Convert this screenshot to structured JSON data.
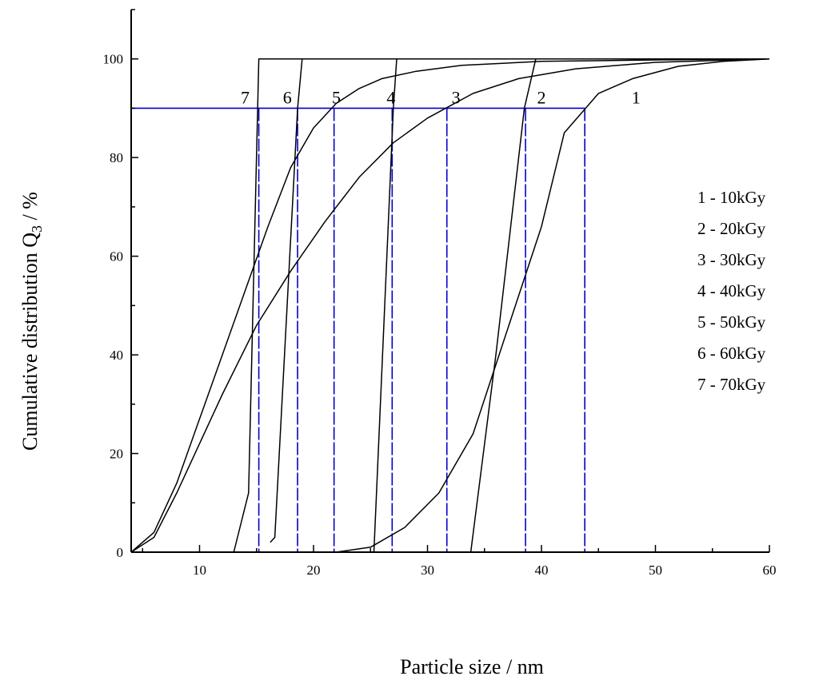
{
  "chart_data": {
    "type": "line",
    "xlabel": "Particle size / nm",
    "ylabel_main": "Cumulative distribution Q",
    "ylabel_sub": "3",
    "ylabel_unit": " / %",
    "xlim": [
      4,
      60
    ],
    "ylim": [
      0,
      110
    ],
    "x_ticks": [
      10,
      20,
      30,
      40,
      50,
      60
    ],
    "y_ticks": [
      0,
      20,
      40,
      60,
      80,
      100
    ],
    "grid": false,
    "legend_placement": "right",
    "colors": {
      "curve": "#000000",
      "guide": "#0000cc"
    },
    "series": [
      {
        "name": "1 - 10kGy",
        "label": "1",
        "label_at": [
          48.3,
          91
        ],
        "x": [
          22,
          25,
          28,
          31,
          34,
          36,
          38,
          40,
          42,
          45,
          48,
          52,
          56,
          60
        ],
        "y": [
          0,
          1,
          5,
          12,
          24,
          38,
          52,
          66,
          85,
          93,
          96,
          98.5,
          99.5,
          100
        ]
      },
      {
        "name": "2 - 20kGy",
        "label": "2",
        "label_at": [
          40,
          91
        ],
        "x": [
          33.8,
          36,
          38.5,
          39.5,
          60
        ],
        "y": [
          0,
          40,
          90,
          100,
          100
        ]
      },
      {
        "name": "3 - 30kGy",
        "label": "3",
        "label_at": [
          32.5,
          91
        ],
        "x": [
          4,
          6,
          8,
          10,
          12,
          15,
          18,
          21,
          24,
          27,
          30,
          34,
          38,
          43,
          50,
          60
        ],
        "y": [
          0,
          3,
          12,
          22,
          32,
          46,
          57,
          67,
          76,
          83,
          88,
          93,
          96,
          98,
          99.3,
          100
        ]
      },
      {
        "name": "4 - 40kGy",
        "label": "4",
        "label_at": [
          26.8,
          91
        ],
        "x": [
          25.3,
          27,
          27.3,
          60
        ],
        "y": [
          0,
          90,
          100,
          100
        ]
      },
      {
        "name": "5 - 50kGy",
        "label": "5",
        "label_at": [
          22,
          91
        ],
        "x": [
          4,
          6,
          8,
          10,
          12,
          14,
          16,
          18,
          20,
          22,
          24,
          26,
          29,
          33,
          40,
          50,
          60
        ],
        "y": [
          0,
          4,
          14,
          27,
          40,
          53,
          66,
          78,
          86,
          91,
          94,
          96,
          97.5,
          98.7,
          99.5,
          99.8,
          100
        ]
      },
      {
        "name": "6 - 60kGy",
        "label": "6",
        "label_at": [
          17.7,
          91
        ],
        "x": [
          16.2,
          16.6,
          18.6,
          19,
          60
        ],
        "y": [
          2,
          3,
          90,
          100,
          100
        ]
      },
      {
        "name": "7 - 70kGy",
        "label": "7",
        "label_at": [
          14,
          91
        ],
        "x": [
          13,
          14.3,
          15.2,
          60
        ],
        "y": [
          0,
          12,
          100,
          100
        ]
      }
    ],
    "d90_guides": {
      "y": 90,
      "x": [
        15.2,
        18.6,
        21.8,
        26.9,
        31.7,
        38.6,
        43.8
      ]
    }
  }
}
